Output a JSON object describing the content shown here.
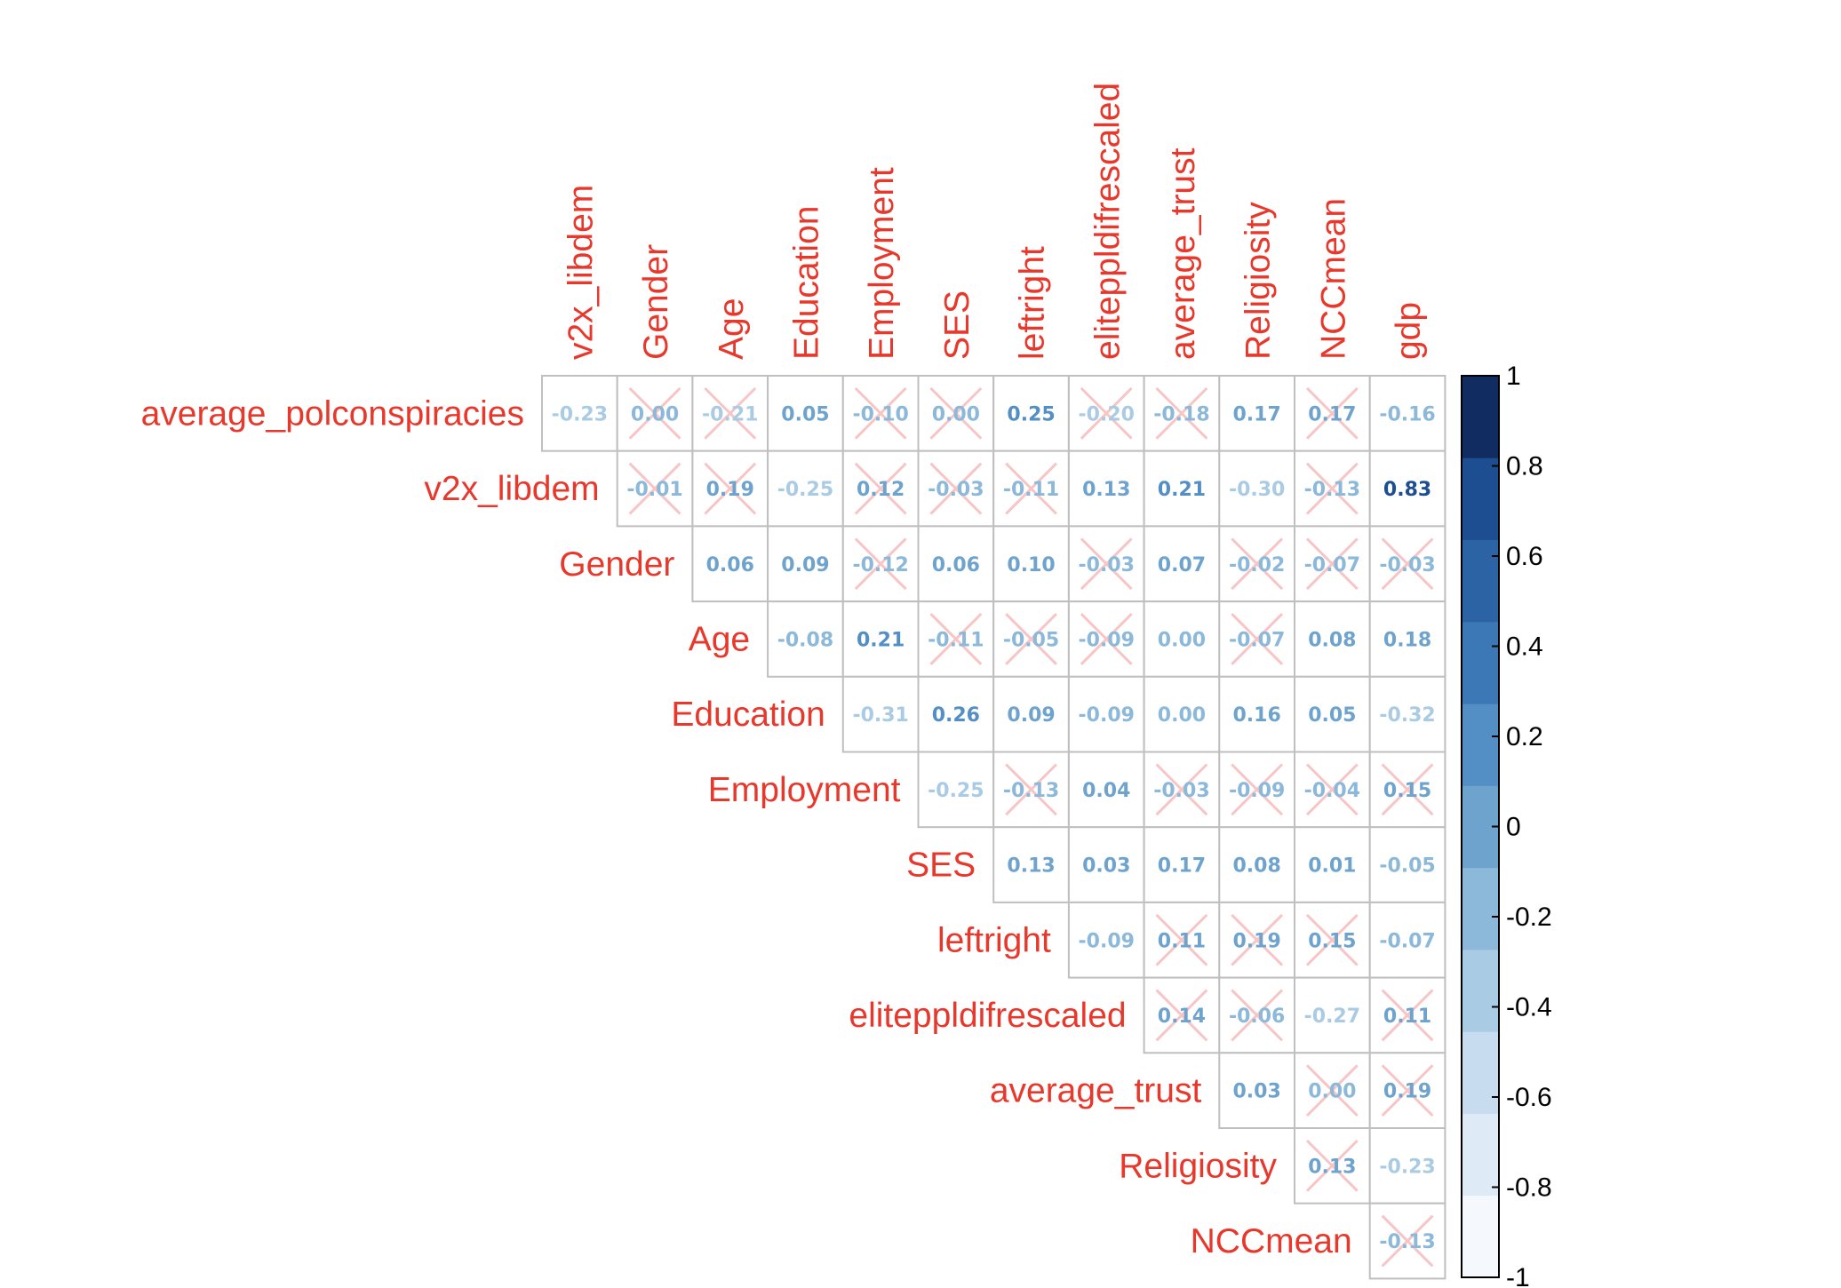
{
  "chart_data": {
    "type": "heatmap",
    "variables": [
      "average_polconspiracies",
      "v2x_libdem",
      "Gender",
      "Age",
      "Education",
      "Employment",
      "SES",
      "leftright",
      "eliteppldifrescaled",
      "average_trust",
      "Religiosity",
      "NCCmean",
      "gdp"
    ],
    "row_labels": [
      "average_polconspiracies",
      "v2x_libdem",
      "Gender",
      "Age",
      "Education",
      "Employment",
      "SES",
      "leftright",
      "eliteppldifrescaled",
      "average_trust",
      "Religiosity",
      "NCCmean"
    ],
    "column_labels": [
      "v2x_libdem",
      "Gender",
      "Age",
      "Education",
      "Employment",
      "SES",
      "leftright",
      "eliteppldifrescaled",
      "average_trust",
      "Religiosity",
      "NCCmean",
      "gdp"
    ],
    "rows": [
      {
        "label": "average_polconspiracies",
        "values": [
          "-0.23",
          "0.00",
          "-0.21",
          "0.05",
          "-0.10",
          "0.00",
          "0.25",
          "-0.20",
          "-0.18",
          "0.17",
          "0.17",
          "-0.16"
        ],
        "crossed": [
          false,
          true,
          true,
          false,
          true,
          true,
          false,
          true,
          true,
          false,
          true,
          false
        ]
      },
      {
        "label": "v2x_libdem",
        "values": [
          "-0.01",
          "0.19",
          "-0.25",
          "0.12",
          "-0.03",
          "-0.11",
          "0.13",
          "0.21",
          "-0.30",
          "-0.13",
          "0.83"
        ],
        "crossed": [
          true,
          true,
          false,
          true,
          true,
          true,
          false,
          false,
          false,
          true,
          false
        ]
      },
      {
        "label": "Gender",
        "values": [
          "0.06",
          "0.09",
          "-0.12",
          "0.06",
          "0.10",
          "-0.03",
          "0.07",
          "-0.02",
          "-0.07",
          "-0.03"
        ],
        "crossed": [
          false,
          false,
          true,
          false,
          false,
          true,
          false,
          true,
          true,
          true
        ]
      },
      {
        "label": "Age",
        "values": [
          "-0.08",
          "0.21",
          "-0.11",
          "-0.05",
          "-0.09",
          "0.00",
          "-0.07",
          "0.08",
          "0.18"
        ],
        "crossed": [
          false,
          false,
          true,
          true,
          true,
          false,
          true,
          false,
          false
        ]
      },
      {
        "label": "Education",
        "values": [
          "-0.31",
          "0.26",
          "0.09",
          "-0.09",
          "0.00",
          "0.16",
          "0.05",
          "-0.32"
        ],
        "crossed": [
          false,
          false,
          false,
          false,
          false,
          false,
          false,
          false
        ]
      },
      {
        "label": "Employment",
        "values": [
          "-0.25",
          "-0.13",
          "0.04",
          "-0.03",
          "-0.09",
          "-0.04",
          "0.15"
        ],
        "crossed": [
          false,
          true,
          false,
          true,
          true,
          true,
          true
        ]
      },
      {
        "label": "SES",
        "values": [
          "0.13",
          "0.03",
          "0.17",
          "0.08",
          "0.01",
          "-0.05"
        ],
        "crossed": [
          false,
          false,
          false,
          false,
          false,
          false
        ]
      },
      {
        "label": "leftright",
        "values": [
          "-0.09",
          "0.11",
          "0.19",
          "0.15",
          "-0.07"
        ],
        "crossed": [
          false,
          true,
          true,
          true,
          false
        ]
      },
      {
        "label": "eliteppldifrescaled",
        "values": [
          "0.14",
          "-0.06",
          "-0.27",
          "0.11"
        ],
        "crossed": [
          true,
          true,
          false,
          true
        ]
      },
      {
        "label": "average_trust",
        "values": [
          "0.03",
          "0.00",
          "0.19"
        ],
        "crossed": [
          false,
          true,
          true
        ]
      },
      {
        "label": "Religiosity",
        "values": [
          "0.13",
          "-0.23"
        ],
        "crossed": [
          true,
          false
        ]
      },
      {
        "label": "NCCmean",
        "values": [
          "-0.13"
        ],
        "crossed": [
          true
        ]
      }
    ],
    "colorbar": {
      "range": [
        -1,
        1
      ],
      "tick_labels": [
        "1",
        "0.8",
        "0.6",
        "0.4",
        "0.2",
        "0",
        "-0.2",
        "-0.4",
        "-0.6",
        "-0.8",
        "-1"
      ],
      "bins": [
        -1,
        -0.8,
        -0.6,
        -0.4,
        -0.2,
        0,
        0.2,
        0.4,
        0.6,
        0.8,
        1
      ],
      "colors": [
        "#f5f9fd",
        "#deeaf5",
        "#c7dcee",
        "#a9cbe3",
        "#8cb8d9",
        "#6ea3ce",
        "#538fc4",
        "#3b78b5",
        "#2b63a5",
        "#1d4e92",
        "#112c61"
      ]
    },
    "label_color": "#e8372b",
    "grid_color": "#bfbfbf",
    "cross_color": "#f7c5c5"
  }
}
